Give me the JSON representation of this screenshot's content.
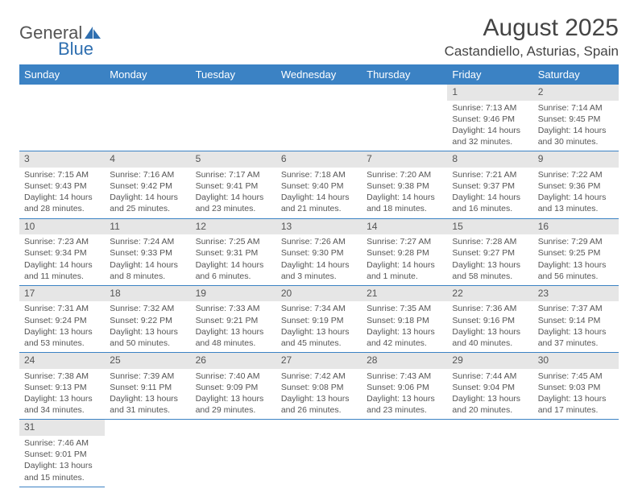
{
  "brand": {
    "name_part1": "General",
    "name_part2": "Blue",
    "icon_color": "#2f6fb0",
    "text_color": "#555555"
  },
  "title": "August 2025",
  "location": "Castandiello, Asturias, Spain",
  "header_bg": "#3b82c4",
  "cell_separator": "#3b82c4",
  "daynum_bg": "#e6e6e6",
  "weekdays": [
    "Sunday",
    "Monday",
    "Tuesday",
    "Wednesday",
    "Thursday",
    "Friday",
    "Saturday"
  ],
  "weeks": [
    [
      null,
      null,
      null,
      null,
      null,
      {
        "d": "1",
        "sr": "7:13 AM",
        "ss": "9:46 PM",
        "dl": "14 hours and 32 minutes."
      },
      {
        "d": "2",
        "sr": "7:14 AM",
        "ss": "9:45 PM",
        "dl": "14 hours and 30 minutes."
      }
    ],
    [
      {
        "d": "3",
        "sr": "7:15 AM",
        "ss": "9:43 PM",
        "dl": "14 hours and 28 minutes."
      },
      {
        "d": "4",
        "sr": "7:16 AM",
        "ss": "9:42 PM",
        "dl": "14 hours and 25 minutes."
      },
      {
        "d": "5",
        "sr": "7:17 AM",
        "ss": "9:41 PM",
        "dl": "14 hours and 23 minutes."
      },
      {
        "d": "6",
        "sr": "7:18 AM",
        "ss": "9:40 PM",
        "dl": "14 hours and 21 minutes."
      },
      {
        "d": "7",
        "sr": "7:20 AM",
        "ss": "9:38 PM",
        "dl": "14 hours and 18 minutes."
      },
      {
        "d": "8",
        "sr": "7:21 AM",
        "ss": "9:37 PM",
        "dl": "14 hours and 16 minutes."
      },
      {
        "d": "9",
        "sr": "7:22 AM",
        "ss": "9:36 PM",
        "dl": "14 hours and 13 minutes."
      }
    ],
    [
      {
        "d": "10",
        "sr": "7:23 AM",
        "ss": "9:34 PM",
        "dl": "14 hours and 11 minutes."
      },
      {
        "d": "11",
        "sr": "7:24 AM",
        "ss": "9:33 PM",
        "dl": "14 hours and 8 minutes."
      },
      {
        "d": "12",
        "sr": "7:25 AM",
        "ss": "9:31 PM",
        "dl": "14 hours and 6 minutes."
      },
      {
        "d": "13",
        "sr": "7:26 AM",
        "ss": "9:30 PM",
        "dl": "14 hours and 3 minutes."
      },
      {
        "d": "14",
        "sr": "7:27 AM",
        "ss": "9:28 PM",
        "dl": "14 hours and 1 minute."
      },
      {
        "d": "15",
        "sr": "7:28 AM",
        "ss": "9:27 PM",
        "dl": "13 hours and 58 minutes."
      },
      {
        "d": "16",
        "sr": "7:29 AM",
        "ss": "9:25 PM",
        "dl": "13 hours and 56 minutes."
      }
    ],
    [
      {
        "d": "17",
        "sr": "7:31 AM",
        "ss": "9:24 PM",
        "dl": "13 hours and 53 minutes."
      },
      {
        "d": "18",
        "sr": "7:32 AM",
        "ss": "9:22 PM",
        "dl": "13 hours and 50 minutes."
      },
      {
        "d": "19",
        "sr": "7:33 AM",
        "ss": "9:21 PM",
        "dl": "13 hours and 48 minutes."
      },
      {
        "d": "20",
        "sr": "7:34 AM",
        "ss": "9:19 PM",
        "dl": "13 hours and 45 minutes."
      },
      {
        "d": "21",
        "sr": "7:35 AM",
        "ss": "9:18 PM",
        "dl": "13 hours and 42 minutes."
      },
      {
        "d": "22",
        "sr": "7:36 AM",
        "ss": "9:16 PM",
        "dl": "13 hours and 40 minutes."
      },
      {
        "d": "23",
        "sr": "7:37 AM",
        "ss": "9:14 PM",
        "dl": "13 hours and 37 minutes."
      }
    ],
    [
      {
        "d": "24",
        "sr": "7:38 AM",
        "ss": "9:13 PM",
        "dl": "13 hours and 34 minutes."
      },
      {
        "d": "25",
        "sr": "7:39 AM",
        "ss": "9:11 PM",
        "dl": "13 hours and 31 minutes."
      },
      {
        "d": "26",
        "sr": "7:40 AM",
        "ss": "9:09 PM",
        "dl": "13 hours and 29 minutes."
      },
      {
        "d": "27",
        "sr": "7:42 AM",
        "ss": "9:08 PM",
        "dl": "13 hours and 26 minutes."
      },
      {
        "d": "28",
        "sr": "7:43 AM",
        "ss": "9:06 PM",
        "dl": "13 hours and 23 minutes."
      },
      {
        "d": "29",
        "sr": "7:44 AM",
        "ss": "9:04 PM",
        "dl": "13 hours and 20 minutes."
      },
      {
        "d": "30",
        "sr": "7:45 AM",
        "ss": "9:03 PM",
        "dl": "13 hours and 17 minutes."
      }
    ],
    [
      {
        "d": "31",
        "sr": "7:46 AM",
        "ss": "9:01 PM",
        "dl": "13 hours and 15 minutes."
      },
      null,
      null,
      null,
      null,
      null,
      null
    ]
  ],
  "labels": {
    "sunrise": "Sunrise:",
    "sunset": "Sunset:",
    "daylight": "Daylight:"
  }
}
